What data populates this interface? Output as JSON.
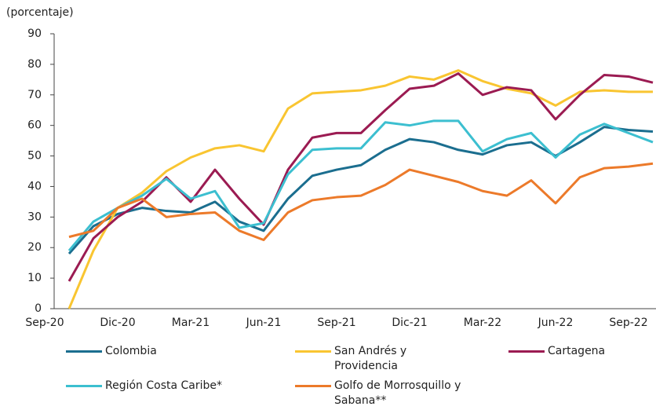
{
  "chart_data": {
    "type": "line",
    "y_label": "(porcentaje)",
    "categories": [
      "Sep-20",
      null,
      null,
      "Dic-20",
      null,
      null,
      "Mar-21",
      null,
      null,
      "Jun-21",
      null,
      null,
      "Sep-21",
      null,
      null,
      "Dic-21",
      null,
      null,
      "Mar-22",
      null,
      null,
      "Jun-22",
      null,
      null,
      "Sep-22",
      null
    ],
    "ylim": [
      0,
      90
    ],
    "yticks": [
      0,
      10,
      20,
      30,
      40,
      50,
      60,
      70,
      80,
      90
    ],
    "series": [
      {
        "name": "Colombia",
        "color": "#1b6e8f",
        "values": [
          null,
          18,
          27,
          31,
          33,
          32,
          31.5,
          35,
          28.5,
          25.5,
          36,
          43.5,
          45.5,
          47,
          52,
          55.5,
          54.5,
          52,
          50.5,
          53.5,
          54.5,
          50,
          54.5,
          59.5,
          58.5,
          58
        ]
      },
      {
        "name": "San Andrés y Providencia",
        "color": "#f9c531",
        "values": [
          null,
          0,
          19,
          33,
          38,
          45,
          49.5,
          52.5,
          53.5,
          51.5,
          65.5,
          70.5,
          71,
          71.5,
          73,
          76,
          75,
          78,
          74.5,
          72,
          70.5,
          66.5,
          71,
          71.5,
          71,
          71
        ]
      },
      {
        "name": "Cartagena",
        "color": "#9b1b52",
        "values": [
          null,
          9,
          23,
          30,
          35,
          43,
          35,
          45.5,
          36,
          27.5,
          45.5,
          56,
          57.5,
          57.5,
          65,
          72,
          73,
          77,
          70,
          72.5,
          71.5,
          62,
          70,
          76.5,
          76,
          74
        ]
      },
      {
        "name": "Región Costa Caribe*",
        "color": "#3cbfd0",
        "values": [
          null,
          19,
          28.5,
          33,
          37,
          42.5,
          36,
          38.5,
          26.5,
          28,
          44,
          52,
          52.5,
          52.5,
          61,
          60,
          61.5,
          61.5,
          51.5,
          55.5,
          57.5,
          49.5,
          57,
          60.5,
          57.5,
          54.5
        ]
      },
      {
        "name": "Golfo de Morrosquillo y Sabana**",
        "color": "#ec7a2a",
        "values": [
          null,
          23.5,
          25.5,
          33,
          36,
          30,
          31,
          31.5,
          25.5,
          22.5,
          31.5,
          35.5,
          36.5,
          37,
          40.5,
          45.5,
          43.5,
          41.5,
          38.5,
          37,
          42,
          34.5,
          43,
          46,
          46.5,
          47.5
        ]
      }
    ]
  }
}
